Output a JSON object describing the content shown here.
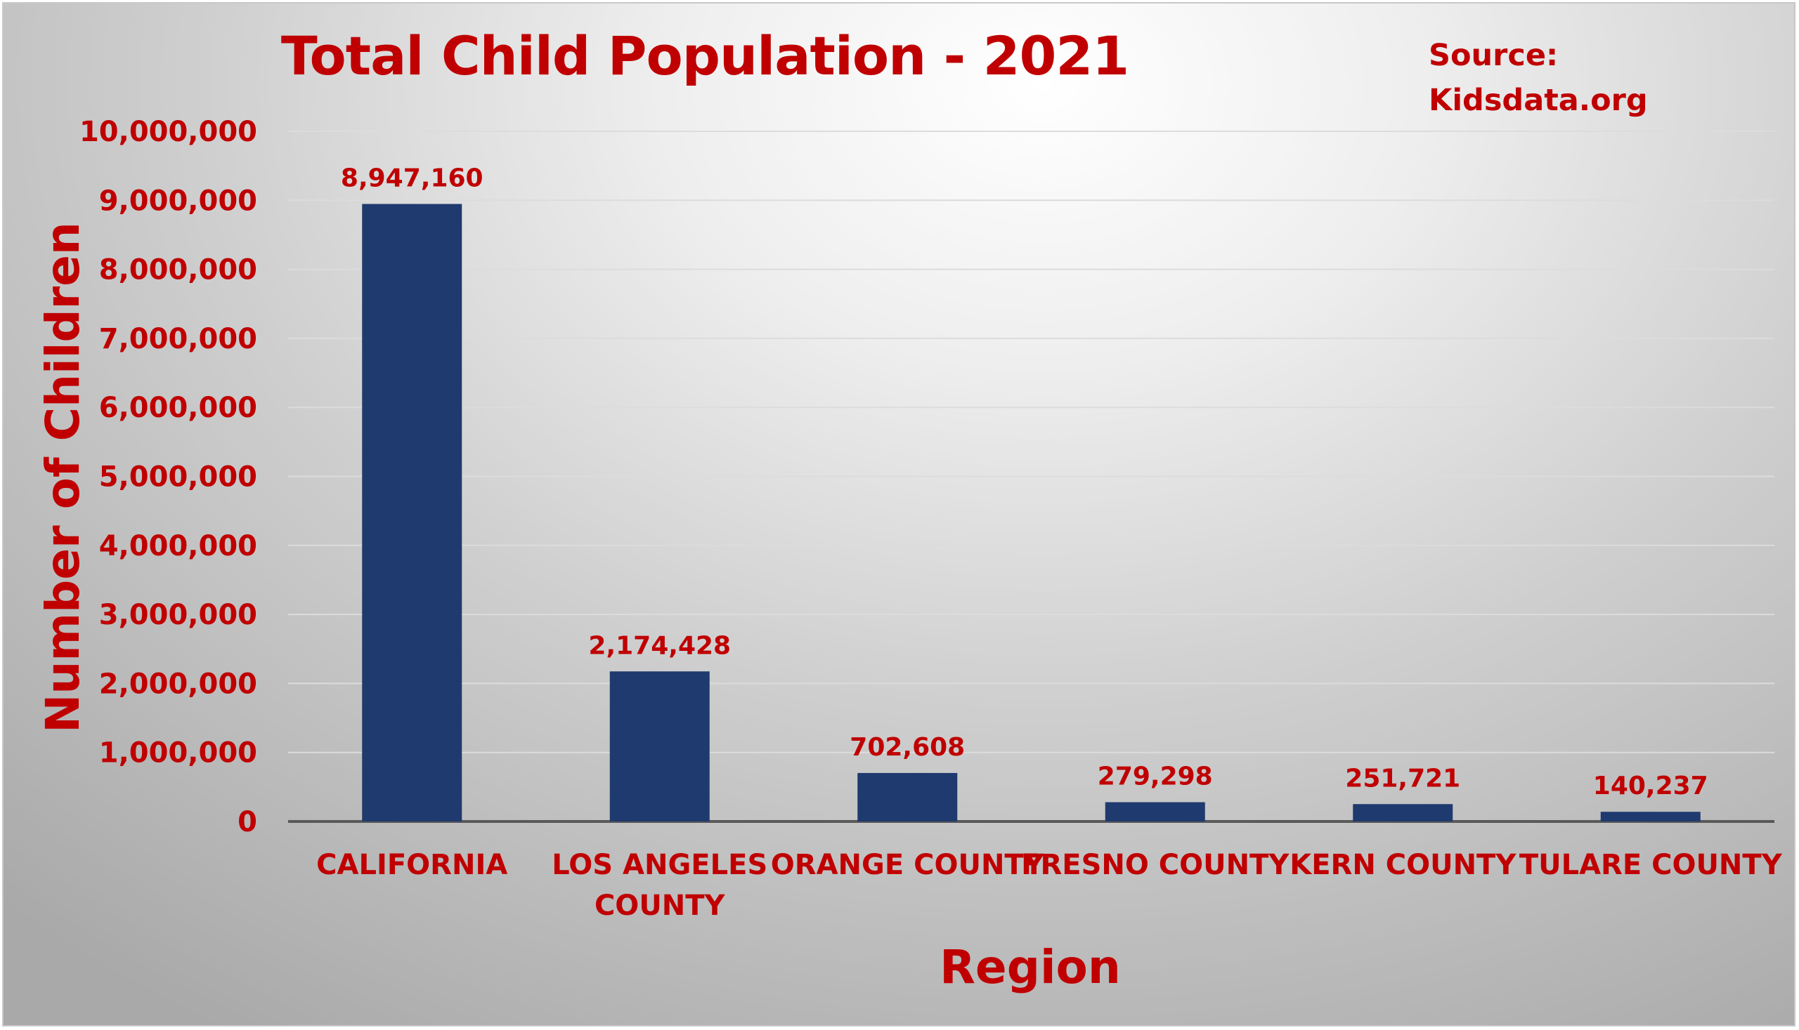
{
  "chart_data": {
    "type": "bar",
    "title": "Total Child Population - 2021",
    "source_label": "Source:",
    "source_value": "Kidsdata.org",
    "xlabel": "Region",
    "ylabel": "Number of Children",
    "categories": [
      [
        "CALIFORNIA"
      ],
      [
        "LOS ANGELES",
        "COUNTY"
      ],
      [
        "ORANGE COUNTY"
      ],
      [
        "FRESNO COUNTY"
      ],
      [
        "KERN COUNTY"
      ],
      [
        "TULARE COUNTY"
      ]
    ],
    "values": [
      8947160,
      2174428,
      702608,
      279298,
      251721,
      140237
    ],
    "data_labels": [
      "8,947,160",
      "2,174,428",
      "702,608",
      "279,298",
      "251,721",
      "140,237"
    ],
    "ylim": [
      0,
      10000000
    ],
    "yticks": [
      0,
      1000000,
      2000000,
      3000000,
      4000000,
      5000000,
      6000000,
      7000000,
      8000000,
      9000000,
      10000000
    ],
    "ytick_labels": [
      "0",
      "1,000,000",
      "2,000,000",
      "3,000,000",
      "4,000,000",
      "5,000,000",
      "6,000,000",
      "7,000,000",
      "8,000,000",
      "9,000,000",
      "10,000,000"
    ],
    "grid": true,
    "legend": "none",
    "colors": {
      "bar": "#1f3a6e",
      "text": "#c00000",
      "gridline": "#dcdcdc",
      "baseline": "#595959"
    }
  }
}
